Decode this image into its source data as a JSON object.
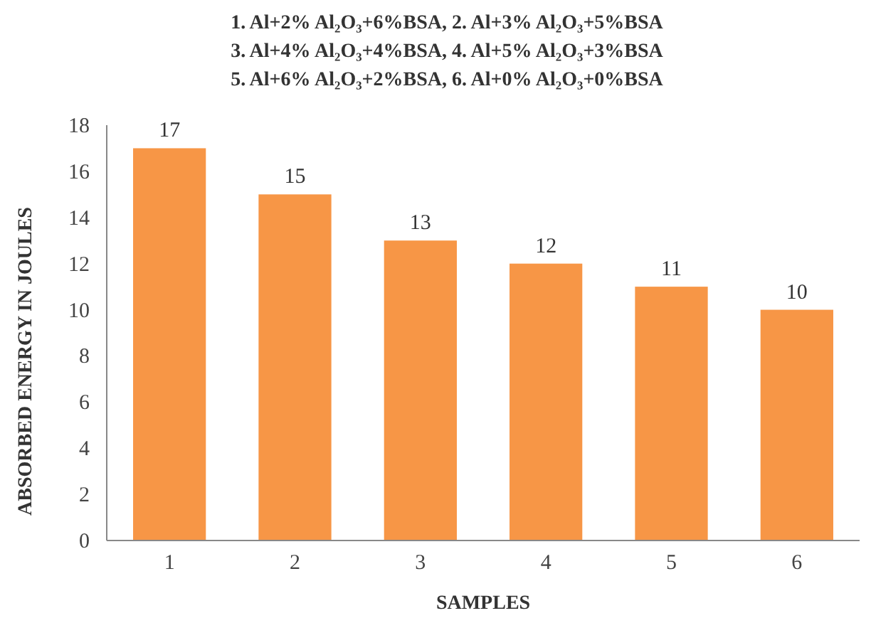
{
  "chart_data": {
    "type": "bar",
    "title": "1. Al+2% Al₂O₃+6%BSA,  2. Al+3% Al₂O₃+5%BSA\n3. Al+4% Al₂O₃+4%BSA, 4. Al+5% Al₂O₃+3%BSA\n5. Al+6% Al₂O₃+2%BSA, 6. Al+0% Al₂O₃+0%BSA",
    "xlabel": "SAMPLES",
    "ylabel": "ABSORBED ENERGY IN  JOULES",
    "categories": [
      "1",
      "2",
      "3",
      "4",
      "5",
      "6"
    ],
    "values": [
      17,
      15,
      13,
      12,
      11,
      10
    ],
    "color": "#f79646",
    "ylim": [
      0,
      18
    ],
    "yticks": [
      0,
      2,
      4,
      6,
      8,
      10,
      12,
      14,
      16,
      18
    ],
    "grid": false,
    "data_labels": true
  }
}
